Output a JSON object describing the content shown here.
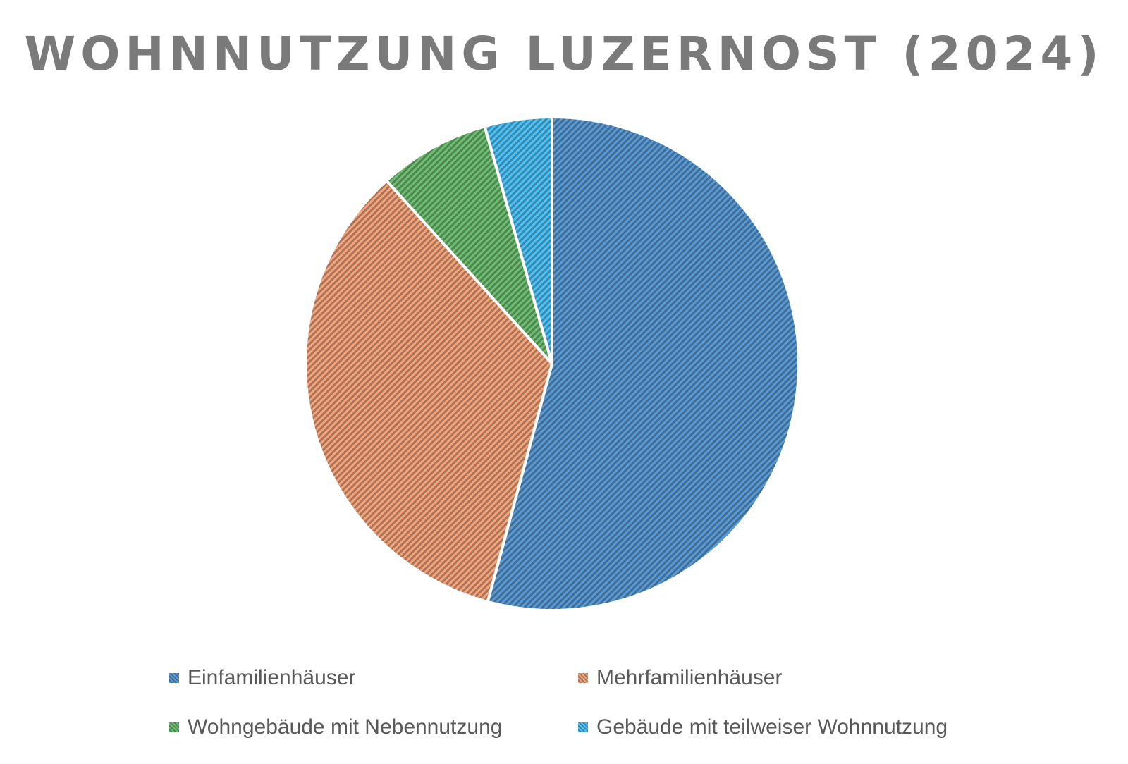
{
  "chart_data": {
    "type": "pie",
    "title": "WOHNNUTZUNG LUZERNOST (2024)",
    "series": [
      {
        "name": "Einfamilienhäuser",
        "value": 54.2,
        "color": "#5b9bd5"
      },
      {
        "name": "Mehrfamilienhäuser",
        "value": 34.1,
        "color": "#f4a57c"
      },
      {
        "name": "Wohngebäude mit Nebennutzung",
        "value": 7.3,
        "color": "#6fbf73"
      },
      {
        "name": "Gebäude mit teilweiser Wohnnutzung",
        "value": 4.4,
        "color": "#4fc3f7"
      }
    ],
    "legend_position": "bottom",
    "fill_style": "diagonal-hatch"
  }
}
